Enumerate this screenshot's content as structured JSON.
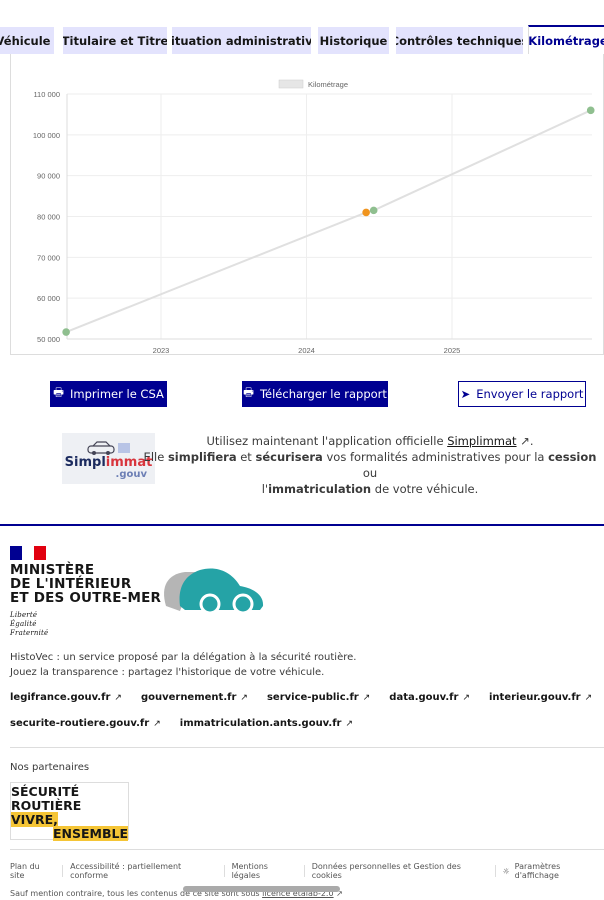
{
  "tabs": [
    {
      "label": "Véhicule",
      "active": false
    },
    {
      "label": "Titulaire et Titre",
      "active": false
    },
    {
      "label": "Situation administrative",
      "active": false
    },
    {
      "label": "Historique",
      "active": false
    },
    {
      "label": "Contrôles techniques",
      "active": false
    },
    {
      "label": "Kilométrage",
      "active": true
    }
  ],
  "chart_data": {
    "type": "line",
    "legend": {
      "label": "Kilométrage",
      "position": "top"
    },
    "xlabel": "",
    "ylabel": "",
    "x_ticks": [
      "2023",
      "2024",
      "2025"
    ],
    "y_ticks": [
      "50 000",
      "60 000",
      "70 000",
      "80 000",
      "90 000",
      "100 000",
      "110 000"
    ],
    "ylim": [
      50000,
      110000
    ],
    "grid": true,
    "line_color": "#e0e0e0",
    "points": [
      {
        "date": "2022-05-08",
        "km": 51700,
        "color": "#8fbf8f"
      },
      {
        "date": "2024-05-30",
        "km": 81000,
        "color": "#f0941e"
      },
      {
        "date": "2024-06-18",
        "km": 81500,
        "color": "#8fbf8f"
      },
      {
        "date": "2025-12-15",
        "km": 106000,
        "color": "#8fbf8f"
      }
    ]
  },
  "actions": {
    "print": "Imprimer le CSA",
    "download": "Télécharger le rapport",
    "send": "Envoyer le rapport"
  },
  "promo": {
    "logo_a": "Simpl",
    "logo_b": "immat",
    "logo_c": ".gouv",
    "l1": "Utilisez maintenant l'application officielle ",
    "link": "Simplimmat",
    "l2a": "Elle ",
    "b1": "simplifiera",
    "l2b": " et ",
    "b2": "sécurisera",
    "l2c": " vos formalités administratives pour la ",
    "b3": "cession",
    "l2d": " ou",
    "l3a": "l'",
    "b4": "immatriculation",
    "l3b": " de votre véhicule."
  },
  "footer": {
    "ministry": [
      "MINISTÈRE",
      "DE L'INTÉRIEUR",
      "ET DES OUTRE-MER"
    ],
    "devise": [
      "Liberté",
      "Égalité",
      "Fraternité"
    ],
    "desc1": "HistoVec : un service proposé par la délégation à la sécurité routière.",
    "desc2": "Jouez la transparence : partagez l'historique de votre véhicule.",
    "links1": [
      "legifrance.gouv.fr",
      "gouvernement.fr",
      "service-public.fr",
      "data.gouv.fr",
      "interieur.gouv.fr"
    ],
    "links2": [
      "securite-routiere.gouv.fr",
      "immatriculation.ants.gouv.fr"
    ],
    "partners": "Nos partenaires",
    "sr": {
      "a": "SÉCURITÉ",
      "b": "ROUTIÈRE",
      "c": "VIVRE,",
      "d": "ENSEMBLE"
    },
    "bottom": [
      "Plan du site",
      "Accessibilité : partiellement conforme",
      "Mentions légales",
      "Données personnelles et Gestion des cookies",
      "Paramètres d'affichage"
    ],
    "licence": "Sauf mention contraire, tous les contenus de ce site sont sous ",
    "licence_link": "licence etalab-2.0"
  }
}
